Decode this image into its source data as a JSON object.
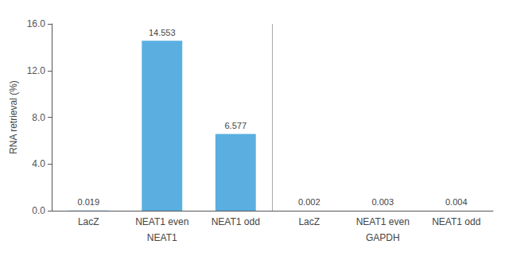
{
  "chart_data": {
    "type": "bar",
    "categories": [
      "LacZ",
      "NEAT1 even",
      "NEAT1 odd",
      "LacZ",
      "NEAT1 even",
      "NEAT1 odd"
    ],
    "values": [
      0.019,
      14.553,
      6.577,
      0.002,
      0.003,
      0.004
    ],
    "color": "#5aafe0",
    "ylabel": "RNA retrieval (%)",
    "ylim": [
      0,
      16.0
    ],
    "yticks": [
      {
        "value": 0,
        "label": "0.0"
      },
      {
        "value": 4,
        "label": "4.0"
      },
      {
        "value": 8,
        "label": "8.0"
      },
      {
        "value": 12,
        "label": "12.0"
      },
      {
        "value": 16,
        "label": "16.0"
      }
    ],
    "annotations": [
      {
        "text": "NEAT1"
      },
      {
        "text": "GAPDH"
      }
    ],
    "data_labels": true,
    "grid": false
  }
}
